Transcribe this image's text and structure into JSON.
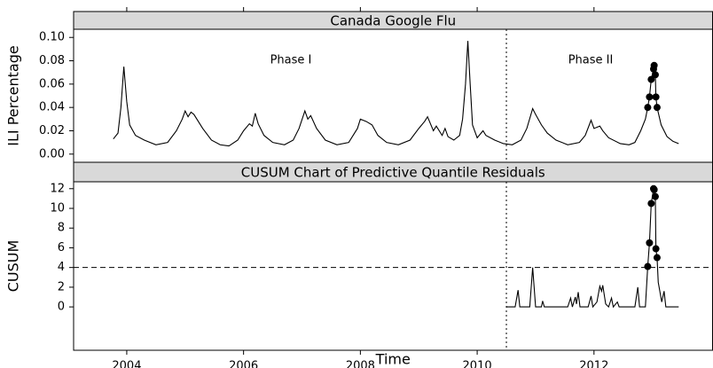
{
  "chart_data": [
    {
      "type": "line",
      "title": "Canada Google Flu",
      "ylabel": "ILI Percentage",
      "xlim": [
        2003.09,
        2014.03
      ],
      "ylim": [
        -0.007,
        0.107
      ],
      "xticks": [
        2004,
        2006,
        2008,
        2010,
        2012
      ],
      "yticks": [
        {
          "value": 0,
          "label": "0.00"
        },
        {
          "value": 0.02,
          "label": "0.02"
        },
        {
          "value": 0.04,
          "label": "0.04"
        },
        {
          "value": 0.06,
          "label": "0.06"
        },
        {
          "value": 0.08,
          "label": "0.08"
        },
        {
          "value": 0.1,
          "label": "0.10"
        }
      ],
      "vline": 2010.5,
      "annotations": [
        "Phase I",
        "Phase II"
      ],
      "series": [
        {
          "color": "#000000",
          "x": [
            2003.77,
            2003.85,
            2003.9,
            2003.95,
            2004.0,
            2004.05,
            2004.15,
            2004.3,
            2004.5,
            2004.7,
            2004.85,
            2004.95,
            2005.0,
            2005.05,
            2005.1,
            2005.15,
            2005.3,
            2005.45,
            2005.6,
            2005.75,
            2005.9,
            2006.0,
            2006.1,
            2006.15,
            2006.2,
            2006.25,
            2006.35,
            2006.5,
            2006.7,
            2006.85,
            2006.95,
            2007.05,
            2007.1,
            2007.15,
            2007.25,
            2007.4,
            2007.6,
            2007.8,
            2007.95,
            2008.0,
            2008.1,
            2008.2,
            2008.3,
            2008.45,
            2008.65,
            2008.85,
            2009.0,
            2009.1,
            2009.15,
            2009.25,
            2009.3,
            2009.4,
            2009.45,
            2009.5,
            2009.6,
            2009.7,
            2009.75,
            2009.8,
            2009.84,
            2009.88,
            2009.92,
            2010.0,
            2010.1,
            2010.15,
            2010.3,
            2010.45,
            2010.6,
            2010.75,
            2010.85,
            2010.95,
            2011.0,
            2011.1,
            2011.2,
            2011.35,
            2011.55,
            2011.75,
            2011.85,
            2011.95,
            2012.0,
            2012.1,
            2012.15,
            2012.25,
            2012.45,
            2012.6,
            2012.7,
            2012.8,
            2012.88,
            2012.92,
            2012.95,
            2012.98,
            2013.02,
            2013.03,
            2013.05,
            2013.06,
            2013.08,
            2013.15,
            2013.25,
            2013.35,
            2013.45
          ],
          "values": [
            0.013,
            0.018,
            0.04,
            0.075,
            0.045,
            0.025,
            0.016,
            0.012,
            0.008,
            0.01,
            0.02,
            0.03,
            0.037,
            0.032,
            0.036,
            0.034,
            0.022,
            0.012,
            0.008,
            0.007,
            0.012,
            0.02,
            0.026,
            0.024,
            0.035,
            0.026,
            0.016,
            0.01,
            0.008,
            0.012,
            0.022,
            0.037,
            0.03,
            0.033,
            0.022,
            0.012,
            0.008,
            0.01,
            0.022,
            0.03,
            0.028,
            0.025,
            0.016,
            0.01,
            0.008,
            0.012,
            0.022,
            0.028,
            0.032,
            0.02,
            0.024,
            0.016,
            0.022,
            0.015,
            0.012,
            0.016,
            0.03,
            0.06,
            0.097,
            0.06,
            0.025,
            0.014,
            0.02,
            0.016,
            0.012,
            0.009,
            0.008,
            0.012,
            0.022,
            0.039,
            0.034,
            0.025,
            0.018,
            0.012,
            0.008,
            0.01,
            0.016,
            0.029,
            0.022,
            0.024,
            0.02,
            0.014,
            0.009,
            0.008,
            0.01,
            0.02,
            0.03,
            0.04,
            0.049,
            0.064,
            0.073,
            0.076,
            0.068,
            0.049,
            0.04,
            0.025,
            0.015,
            0.011,
            0.009
          ]
        }
      ],
      "points": {
        "color": "#000000",
        "x": [
          2012.92,
          2012.95,
          2012.98,
          2013.02,
          2013.03,
          2013.05,
          2013.06,
          2013.08
        ],
        "values": [
          0.04,
          0.049,
          0.064,
          0.073,
          0.076,
          0.068,
          0.049,
          0.04
        ]
      }
    },
    {
      "type": "line",
      "title": "CUSUM Chart of Predictive Quantile Residuals",
      "ylabel": "CUSUM",
      "xlabel": "Time",
      "xlim": [
        2003.09,
        2014.03
      ],
      "ylim": [
        -4.4,
        12.7
      ],
      "xticks": [
        2004,
        2006,
        2008,
        2010,
        2012
      ],
      "yticks": [
        0,
        2,
        4,
        6,
        8,
        10,
        12
      ],
      "vline": 2010.5,
      "hline": 4,
      "series": [
        {
          "color": "#000000",
          "x": [
            2010.5,
            2010.65,
            2010.7,
            2010.73,
            2010.9,
            2010.95,
            2011.0,
            2011.1,
            2011.12,
            2011.15,
            2011.55,
            2011.6,
            2011.63,
            2011.68,
            2011.7,
            2011.73,
            2011.76,
            2011.9,
            2011.95,
            2011.98,
            2012.05,
            2012.1,
            2012.13,
            2012.15,
            2012.2,
            2012.25,
            2012.3,
            2012.33,
            2012.4,
            2012.43,
            2012.7,
            2012.75,
            2012.78,
            2012.88,
            2012.92,
            2012.95,
            2012.98,
            2013.02,
            2013.03,
            2013.05,
            2013.06,
            2013.08,
            2013.1,
            2013.13,
            2013.16,
            2013.2,
            2013.23,
            2013.45
          ],
          "values": [
            0,
            0,
            1.7,
            0,
            0,
            4.0,
            0,
            0,
            0.6,
            0,
            0,
            0.9,
            0,
            1.0,
            0.3,
            1.5,
            0,
            0,
            1.1,
            0,
            0.5,
            2.1,
            1.6,
            2.2,
            0.3,
            0,
            0.9,
            0,
            0.5,
            0,
            0,
            2.0,
            0,
            0,
            4.1,
            6.5,
            10.5,
            12.0,
            11.9,
            11.2,
            5.9,
            5.0,
            2.5,
            1.5,
            0.5,
            1.6,
            0,
            0
          ]
        }
      ],
      "points": {
        "color": "#000000",
        "x": [
          2012.92,
          2012.95,
          2012.98,
          2013.02,
          2013.03,
          2013.05,
          2013.06,
          2013.08
        ],
        "values": [
          4.1,
          6.5,
          10.5,
          12.0,
          11.9,
          11.2,
          5.9,
          5.0
        ]
      }
    }
  ]
}
